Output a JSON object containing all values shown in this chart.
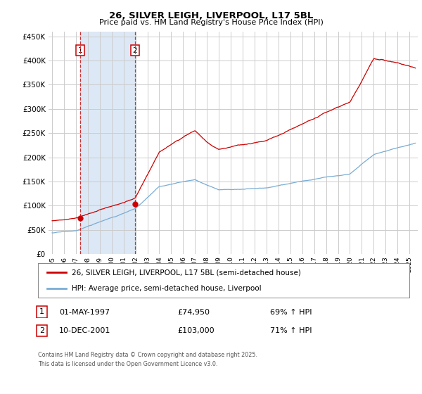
{
  "title": "26, SILVER LEIGH, LIVERPOOL, L17 5BL",
  "subtitle": "Price paid vs. HM Land Registry's House Price Index (HPI)",
  "red_label": "26, SILVER LEIGH, LIVERPOOL, L17 5BL (semi-detached house)",
  "blue_label": "HPI: Average price, semi-detached house, Liverpool",
  "purchase1_label": "1",
  "purchase1_date": "01-MAY-1997",
  "purchase1_price": "£74,950",
  "purchase1_hpi": "69% ↑ HPI",
  "purchase1_x": 1997.37,
  "purchase1_y": 74950,
  "purchase2_label": "2",
  "purchase2_date": "10-DEC-2001",
  "purchase2_price": "£103,000",
  "purchase2_hpi": "71% ↑ HPI",
  "purchase2_x": 2001.94,
  "purchase2_y": 103000,
  "ylim": [
    0,
    460000
  ],
  "xlim_start": 1994.7,
  "xlim_end": 2025.7,
  "vline1_x": 1997.37,
  "vline2_x": 2001.94,
  "footer": "Contains HM Land Registry data © Crown copyright and database right 2025.\nThis data is licensed under the Open Government Licence v3.0.",
  "red_color": "#cc0000",
  "blue_color": "#7aadd4",
  "vline_color": "#cc3333",
  "shade_color": "#dce8f5",
  "background_color": "#ffffff",
  "plot_bg_color": "#ffffff"
}
